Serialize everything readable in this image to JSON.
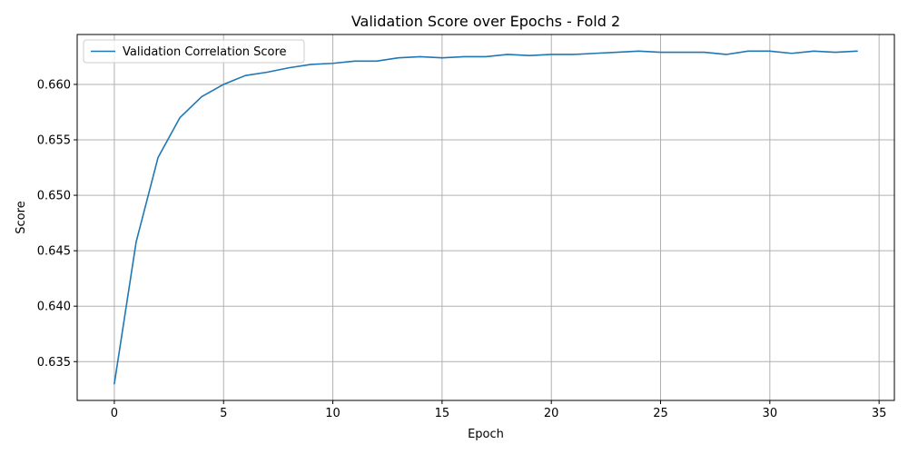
{
  "chart_data": {
    "type": "line",
    "title": "Validation Score over Epochs - Fold 2",
    "xlabel": "Epoch",
    "ylabel": "Score",
    "xlim": [
      -1.7,
      35.7
    ],
    "ylim": [
      0.6315,
      0.6645
    ],
    "xticks": [
      0,
      5,
      10,
      15,
      20,
      25,
      30,
      35
    ],
    "yticks": [
      0.635,
      0.64,
      0.645,
      0.65,
      0.655,
      0.66
    ],
    "xtick_labels": [
      "0",
      "5",
      "10",
      "15",
      "20",
      "25",
      "30",
      "35"
    ],
    "ytick_labels": [
      "0.635",
      "0.640",
      "0.645",
      "0.650",
      "0.655",
      "0.660"
    ],
    "grid": true,
    "legend_position": "upper-left",
    "series": [
      {
        "name": "Validation Correlation Score",
        "color": "#1f77b4",
        "x": [
          0,
          1,
          2,
          3,
          4,
          5,
          6,
          7,
          8,
          9,
          10,
          11,
          12,
          13,
          14,
          15,
          16,
          17,
          18,
          19,
          20,
          21,
          22,
          23,
          24,
          25,
          26,
          27,
          28,
          29,
          30,
          31,
          32,
          33,
          34
        ],
        "y": [
          0.633,
          0.6458,
          0.6534,
          0.657,
          0.6589,
          0.66,
          0.6608,
          0.6611,
          0.6615,
          0.6618,
          0.6619,
          0.6621,
          0.6621,
          0.6624,
          0.6625,
          0.6624,
          0.6625,
          0.6625,
          0.6627,
          0.6626,
          0.6627,
          0.6627,
          0.6628,
          0.6629,
          0.663,
          0.6629,
          0.6629,
          0.6629,
          0.6627,
          0.663,
          0.663,
          0.6628,
          0.663,
          0.6629,
          0.663
        ]
      }
    ]
  }
}
